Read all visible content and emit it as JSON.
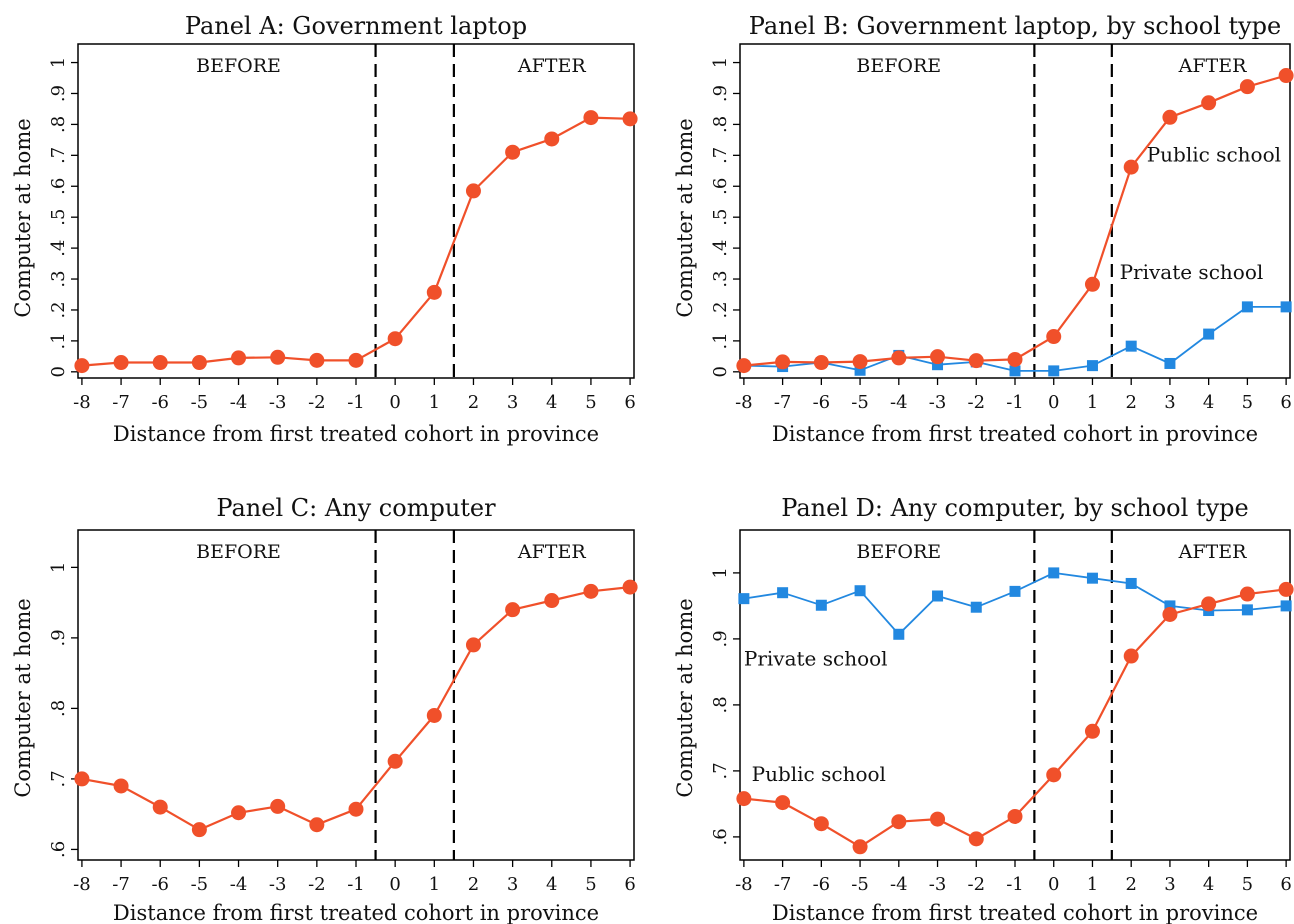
{
  "chart_data": [
    {
      "type": "line",
      "title": "Panel A: Government laptop",
      "xlabel": "Distance from first treated cohort in province",
      "ylabel": "Computer at home",
      "x": [
        -8,
        -7,
        -6,
        -5,
        -4,
        -3,
        -2,
        -1,
        0,
        1,
        2,
        3,
        4,
        5,
        6
      ],
      "xlim": [
        -8.1,
        6.1
      ],
      "ylim": [
        -0.02,
        1.06
      ],
      "yticks": [
        0,
        0.1,
        0.2,
        0.3,
        0.4,
        0.5,
        0.6,
        0.7,
        0.8,
        0.9,
        1
      ],
      "ytick_labels": [
        "0",
        ".1",
        ".2",
        ".3",
        ".4",
        ".5",
        ".6",
        ".7",
        ".8",
        ".9",
        "1"
      ],
      "xtick_labels": [
        "-8",
        "-7",
        "-6",
        "-5",
        "-4",
        "-3",
        "-2",
        "-1",
        "0",
        "1",
        "2",
        "3",
        "4",
        "5",
        "6"
      ],
      "vlines": [
        -0.5,
        1.5
      ],
      "phases": [
        {
          "text": "BEFORE",
          "x": -4
        },
        {
          "text": "AFTER",
          "x": 4
        }
      ],
      "grid": false,
      "series": [
        {
          "color": "#f0502a",
          "marker": "circle",
          "values": [
            0.02,
            0.03,
            0.03,
            0.03,
            0.045,
            0.047,
            0.037,
            0.037,
            0.107,
            0.257,
            0.585,
            0.71,
            0.753,
            0.822,
            0.818
          ]
        }
      ]
    },
    {
      "type": "line",
      "title": "Panel B: Government laptop, by school type",
      "xlabel": "Distance from first treated cohort in province",
      "ylabel": "Computer at home",
      "x": [
        -8,
        -7,
        -6,
        -5,
        -4,
        -3,
        -2,
        -1,
        0,
        1,
        2,
        3,
        4,
        5,
        6
      ],
      "xlim": [
        -8.1,
        6.1
      ],
      "ylim": [
        -0.02,
        1.06
      ],
      "yticks": [
        0,
        0.1,
        0.2,
        0.3,
        0.4,
        0.5,
        0.6,
        0.7,
        0.8,
        0.9,
        1
      ],
      "ytick_labels": [
        "0",
        ".1",
        ".2",
        ".3",
        ".4",
        ".5",
        ".6",
        ".7",
        ".8",
        ".9",
        "1"
      ],
      "xtick_labels": [
        "-8",
        "-7",
        "-6",
        "-5",
        "-4",
        "-3",
        "-2",
        "-1",
        "0",
        "1",
        "2",
        "3",
        "4",
        "5",
        "6"
      ],
      "vlines": [
        -0.5,
        1.5
      ],
      "phases": [
        {
          "text": "BEFORE",
          "x": -4
        },
        {
          "text": "AFTER",
          "x": 4.1
        }
      ],
      "grid": false,
      "series": [
        {
          "name": "Private school",
          "color": "#2288e0",
          "marker": "square",
          "label_x": 1.7,
          "label_y": 0.3,
          "values": [
            0.02,
            0.017,
            0.03,
            0.005,
            0.053,
            0.023,
            0.032,
            0.003,
            0.003,
            0.02,
            0.083,
            0.027,
            0.122,
            0.21,
            0.21
          ]
        },
        {
          "name": "Public school",
          "color": "#f0502a",
          "marker": "circle",
          "label_x": 2.4,
          "label_y": 0.68,
          "values": [
            0.02,
            0.032,
            0.03,
            0.033,
            0.045,
            0.049,
            0.036,
            0.04,
            0.114,
            0.283,
            0.662,
            0.823,
            0.87,
            0.922,
            0.958
          ]
        }
      ]
    },
    {
      "type": "line",
      "title": "Panel C: Any computer",
      "xlabel": "Distance from first treated cohort in province",
      "ylabel": "Computer at home",
      "x": [
        -8,
        -7,
        -6,
        -5,
        -4,
        -3,
        -2,
        -1,
        0,
        1,
        2,
        3,
        4,
        5,
        6
      ],
      "xlim": [
        -8.1,
        6.1
      ],
      "ylim": [
        0.585,
        1.053
      ],
      "yticks": [
        0.6,
        0.7,
        0.8,
        0.9,
        1
      ],
      "ytick_labels": [
        ".6",
        ".7",
        ".8",
        ".9",
        "1"
      ],
      "xtick_labels": [
        "-8",
        "-7",
        "-6",
        "-5",
        "-4",
        "-3",
        "-2",
        "-1",
        "0",
        "1",
        "2",
        "3",
        "4",
        "5",
        "6"
      ],
      "vlines": [
        -0.5,
        1.5
      ],
      "phases": [
        {
          "text": "BEFORE",
          "x": -4
        },
        {
          "text": "AFTER",
          "x": 4
        }
      ],
      "grid": false,
      "series": [
        {
          "color": "#f0502a",
          "marker": "circle",
          "values": [
            0.7,
            0.69,
            0.66,
            0.628,
            0.652,
            0.661,
            0.635,
            0.657,
            0.725,
            0.79,
            0.89,
            0.94,
            0.953,
            0.966,
            0.972
          ]
        }
      ]
    },
    {
      "type": "line",
      "title": "Panel D: Any computer, by school type",
      "xlabel": "Distance from first treated cohort in province",
      "ylabel": "Computer at home",
      "x": [
        -8,
        -7,
        -6,
        -5,
        -4,
        -3,
        -2,
        -1,
        0,
        1,
        2,
        3,
        4,
        5,
        6
      ],
      "xlim": [
        -8.1,
        6.1
      ],
      "ylim": [
        0.565,
        1.065
      ],
      "yticks": [
        0.6,
        0.7,
        0.8,
        0.9,
        1
      ],
      "ytick_labels": [
        ".6",
        ".7",
        ".8",
        ".9",
        "1"
      ],
      "xtick_labels": [
        "-8",
        "-7",
        "-6",
        "-5",
        "-4",
        "-3",
        "-2",
        "-1",
        "0",
        "1",
        "2",
        "3",
        "4",
        "5",
        "6"
      ],
      "vlines": [
        -0.5,
        1.5
      ],
      "phases": [
        {
          "text": "BEFORE",
          "x": -4
        },
        {
          "text": "AFTER",
          "x": 4.1
        }
      ],
      "grid": false,
      "series": [
        {
          "name": "Private school",
          "color": "#2288e0",
          "marker": "square",
          "label_x": -8,
          "label_y": 0.86,
          "values": [
            0.961,
            0.97,
            0.951,
            0.973,
            0.907,
            0.965,
            0.948,
            0.972,
            1.0,
            0.992,
            0.984,
            0.95,
            0.943,
            0.944,
            0.95
          ]
        },
        {
          "name": "Public school",
          "color": "#f0502a",
          "marker": "circle",
          "label_x": -7.8,
          "label_y": 0.685,
          "values": [
            0.658,
            0.652,
            0.62,
            0.585,
            0.623,
            0.627,
            0.597,
            0.631,
            0.694,
            0.76,
            0.874,
            0.937,
            0.953,
            0.968,
            0.975
          ]
        }
      ]
    }
  ]
}
